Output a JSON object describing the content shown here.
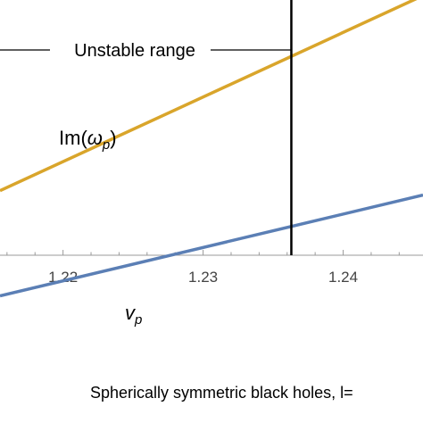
{
  "chart_data": {
    "type": "line",
    "x_tick_labels": [
      "1.22",
      "1.23",
      "1.24"
    ],
    "x_ticks": [
      1.22,
      1.23,
      1.24
    ],
    "xlim": [
      1.2155,
      1.2457
    ],
    "ylim": [
      -0.93,
      1.0
    ],
    "vertical_line": {
      "x": 1.2363
    },
    "range_annotation": {
      "text": "Unstable range"
    },
    "series": [
      {
        "label_main": "Im(",
        "label_symbol": "ω",
        "label_sub": "p",
        "label_close": ")",
        "color": "#D9A52B",
        "x": [
          1.2155,
          1.2457
        ],
        "y": [
          0.13,
          1.02
        ]
      },
      {
        "label_main": "",
        "label_symbol": "v",
        "label_sub": "p",
        "label_close": "",
        "color": "#5B7FB5",
        "x": [
          1.2155,
          1.2457
        ],
        "y": [
          -0.35,
          0.11
        ]
      }
    ],
    "caption": "Spherically symmetric black holes, l="
  }
}
